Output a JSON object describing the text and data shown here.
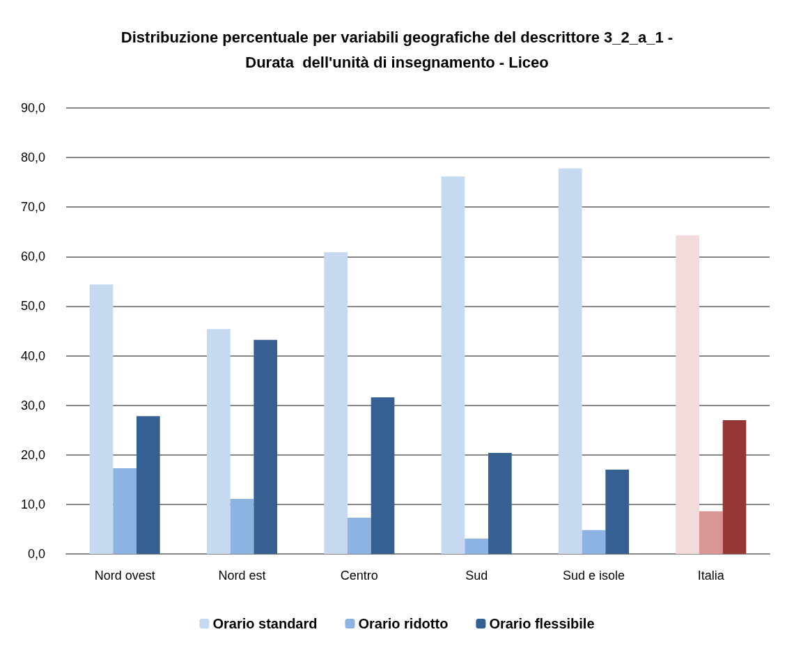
{
  "chart_data": {
    "type": "bar",
    "title": "Distribuzione percentuale per variabili geografiche del descrittore 3_2_a_1 -\nDurata  dell'unità di insegnamento - Liceo",
    "categories": [
      "Nord ovest",
      "Nord est",
      "Centro",
      "Sud",
      "Sud e isole",
      "Italia"
    ],
    "series": [
      {
        "name": "Orario standard",
        "color": "#c6d9f1",
        "colors": [
          "#c6d9f1",
          "#c6d9f1",
          "#c6d9f1",
          "#c6d9f1",
          "#c6d9f1",
          "#f2dcdb"
        ],
        "values": [
          54.4,
          45.4,
          60.9,
          76.2,
          77.8,
          64.3
        ]
      },
      {
        "name": "Orario ridotto",
        "color": "#8db3e2",
        "colors": [
          "#8db3e2",
          "#8db3e2",
          "#8db3e2",
          "#8db3e2",
          "#8db3e2",
          "#d99694"
        ],
        "values": [
          17.3,
          11.1,
          7.3,
          3.1,
          4.8,
          8.6
        ]
      },
      {
        "name": "Orario flessibile",
        "color": "#366092",
        "colors": [
          "#366092",
          "#366092",
          "#366092",
          "#366092",
          "#366092",
          "#953735"
        ],
        "values": [
          27.8,
          43.2,
          31.6,
          20.4,
          17.0,
          27.0
        ]
      }
    ],
    "ylim": [
      0,
      90
    ],
    "yticks": [
      {
        "value": 0,
        "label": "0,0"
      },
      {
        "value": 10,
        "label": "10,0"
      },
      {
        "value": 20,
        "label": "20,0"
      },
      {
        "value": 30,
        "label": "30,0"
      },
      {
        "value": 40,
        "label": "40,0"
      },
      {
        "value": 50,
        "label": "50,0"
      },
      {
        "value": 60,
        "label": "60,0"
      },
      {
        "value": 70,
        "label": "70,0"
      },
      {
        "value": 80,
        "label": "80,0"
      },
      {
        "value": 90,
        "label": "90,0"
      }
    ],
    "grid": "y",
    "legend": "bottom"
  }
}
